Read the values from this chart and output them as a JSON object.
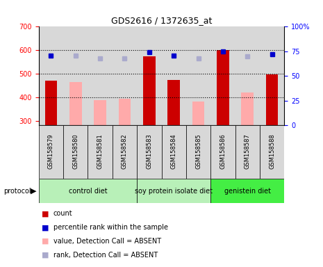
{
  "title": "GDS2616 / 1372635_at",
  "samples": [
    "GSM158579",
    "GSM158580",
    "GSM158581",
    "GSM158582",
    "GSM158583",
    "GSM158584",
    "GSM158585",
    "GSM158586",
    "GSM158587",
    "GSM158588"
  ],
  "count_values": [
    470,
    null,
    null,
    null,
    575,
    473,
    null,
    600,
    null,
    497
  ],
  "absent_values": [
    null,
    465,
    388,
    393,
    null,
    null,
    382,
    null,
    420,
    null
  ],
  "rank_present": [
    71,
    null,
    null,
    null,
    74,
    71,
    null,
    75,
    null,
    72
  ],
  "rank_absent": [
    null,
    71,
    68,
    68,
    null,
    null,
    68,
    null,
    70,
    null
  ],
  "ylim_left": [
    280,
    700
  ],
  "ylim_right": [
    0,
    100
  ],
  "yticks_left": [
    300,
    400,
    500,
    600,
    700
  ],
  "yticks_right": [
    0,
    25,
    50,
    75,
    100
  ],
  "ytick_right_labels": [
    "0",
    "25",
    "50",
    "75",
    "100%"
  ],
  "color_count": "#cc0000",
  "color_rank_present": "#0000cc",
  "color_absent": "#ffaaaa",
  "color_rank_absent": "#aaaacc",
  "bar_width": 0.5,
  "marker_size": 5,
  "groups": [
    {
      "label": "control diet",
      "start": 0,
      "end": 4,
      "color": "#b8f0b8"
    },
    {
      "label": "soy protein isolate diet",
      "start": 4,
      "end": 7,
      "color": "#b8f0b8"
    },
    {
      "label": "genistein diet",
      "start": 7,
      "end": 10,
      "color": "#44ee44"
    }
  ],
  "col_bg_color": "#d8d8d8",
  "plot_bg_color": "#ffffff"
}
